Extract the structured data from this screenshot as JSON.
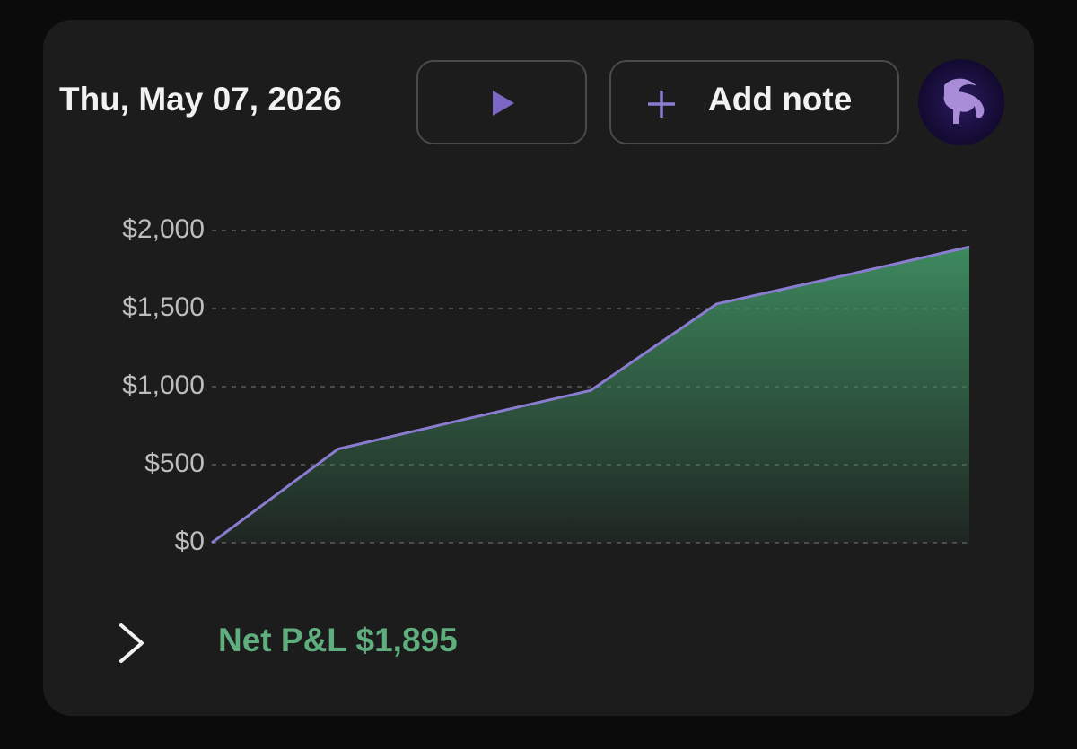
{
  "header": {
    "date": "Thu, May 07, 2026",
    "add_note": "Add note"
  },
  "chart_data": {
    "type": "area",
    "categories": [
      null,
      null,
      null,
      null,
      null,
      null,
      null
    ],
    "series": [
      {
        "name": null,
        "color": "#8a7cd0",
        "fill": "#3f8f62",
        "values": [
          0,
          600,
          790,
          975,
          1530,
          1710,
          1895
        ]
      }
    ],
    "ylim": [
      0,
      2000
    ],
    "yticks": [
      {
        "value": 0,
        "label": "$0"
      },
      {
        "value": 500,
        "label": "$500"
      },
      {
        "value": 1000,
        "label": "$1,000"
      },
      {
        "value": 1500,
        "label": "$1,500"
      },
      {
        "value": 2000,
        "label": "$2,000"
      }
    ],
    "grid": true
  },
  "footer": {
    "net_pnl": "Net P&L $1,895"
  }
}
